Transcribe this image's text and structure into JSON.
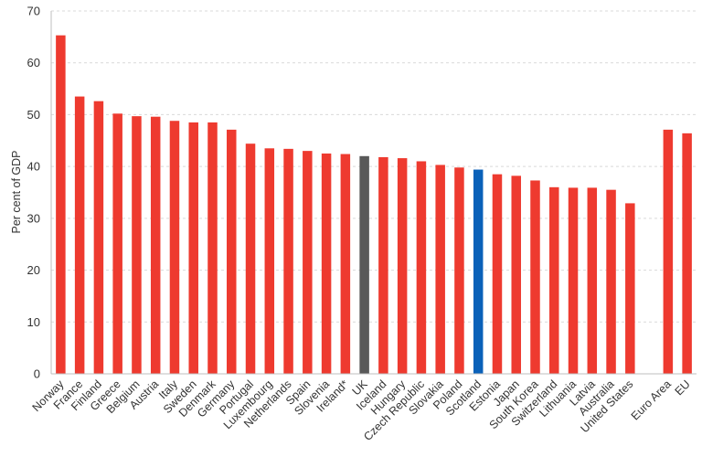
{
  "chart_data": {
    "type": "bar",
    "ylabel": "Per cent of GDP",
    "ylim": [
      0,
      70
    ],
    "yticks": [
      0,
      10,
      20,
      30,
      40,
      50,
      60,
      70
    ],
    "grid": true,
    "categories": [
      "Norway",
      "France",
      "Finland",
      "Greece",
      "Belgium",
      "Austria",
      "Italy",
      "Sweden",
      "Denmark",
      "Germany",
      "Portugal",
      "Luxembourg",
      "Netherlands",
      "Spain",
      "Slovenia",
      "Ireland*",
      "UK",
      "Iceland",
      "Hungary",
      "Czech Republic",
      "Slovakia",
      "Poland",
      "Scotland",
      "Estonia",
      "Japan",
      "South Korea",
      "Switzerland",
      "Lithuania",
      "Latvia",
      "Australia",
      "United States",
      "",
      "Euro Area",
      "EU"
    ],
    "values": [
      65.3,
      53.5,
      52.6,
      50.2,
      49.7,
      49.6,
      48.8,
      48.5,
      48.5,
      47.1,
      44.4,
      43.5,
      43.4,
      43.0,
      42.5,
      42.4,
      42.0,
      41.8,
      41.6,
      41.0,
      40.3,
      39.8,
      39.4,
      38.5,
      38.2,
      37.3,
      36.0,
      35.9,
      35.9,
      35.5,
      32.9,
      null,
      47.1,
      46.4
    ],
    "colors": {
      "default": "#ee3a2f",
      "UK": "#595959",
      "Scotland": "#0a61b9"
    }
  }
}
